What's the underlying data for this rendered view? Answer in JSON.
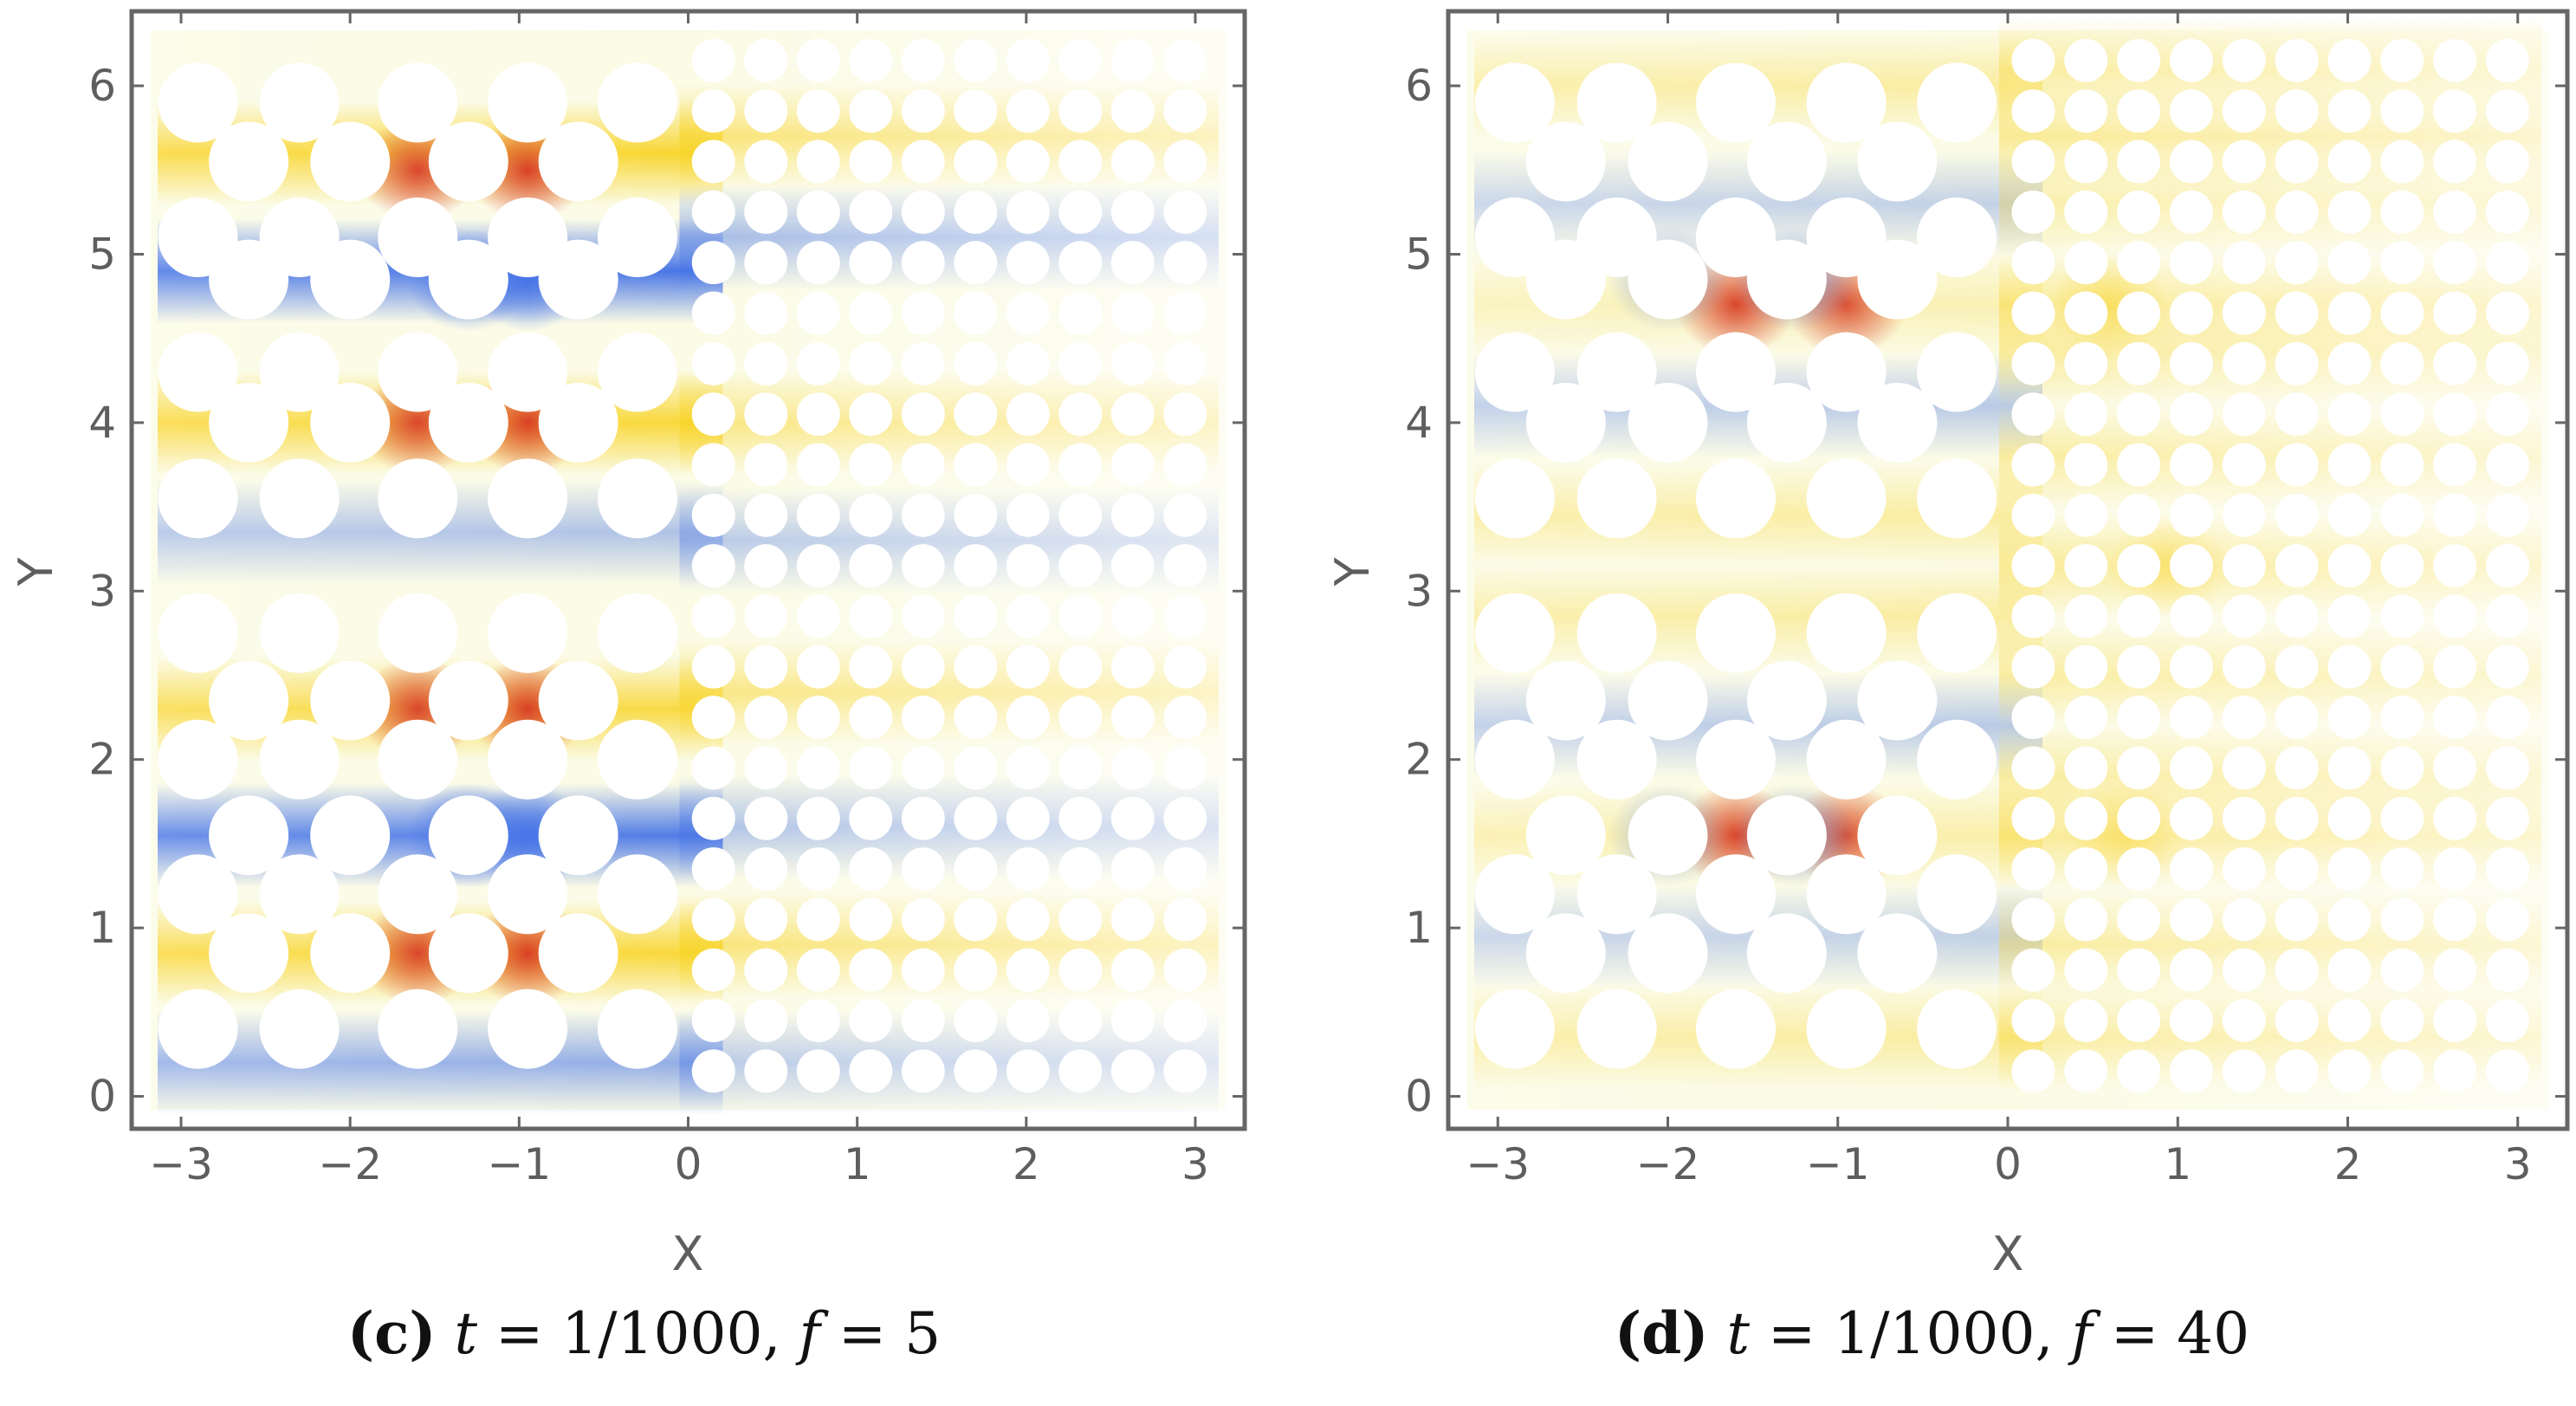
{
  "colors": {
    "frame": "#666666",
    "tick_text": "#5e5e5e",
    "negative": "#3f6fe6",
    "neutral": "#fbfbe6",
    "positive_mid": "#f8d21e",
    "positive_high": "#d7381c"
  },
  "chart_data": [
    {
      "type": "heatmap",
      "panel": "c",
      "caption": {
        "label": "(c)",
        "t_var": "t",
        "t_value": "= 1/1000,",
        "f_var": "f",
        "f_value": "= 5"
      },
      "xlabel": "X",
      "ylabel": "Y",
      "xlim": [
        -3.2,
        3.2
      ],
      "ylim": [
        -0.1,
        6.35
      ],
      "xticks": [
        -3,
        -2,
        -1,
        0,
        1,
        2,
        3
      ],
      "xtick_labels": [
        "−3",
        "−2",
        "−1",
        "0",
        "1",
        "2",
        "3"
      ],
      "yticks": [
        0,
        1,
        2,
        3,
        4,
        5,
        6
      ],
      "ytick_labels": [
        "0",
        "1",
        "2",
        "3",
        "4",
        "5",
        "6"
      ],
      "field_bands_left": [
        {
          "y": 5.6,
          "value": 0.85
        },
        {
          "y": 4.9,
          "value": -0.9
        },
        {
          "y": 4.0,
          "value": 0.8
        },
        {
          "y": 3.35,
          "value": -0.35
        },
        {
          "y": 2.3,
          "value": 0.75
        },
        {
          "y": 1.55,
          "value": -0.85
        },
        {
          "y": 0.85,
          "value": 0.8
        },
        {
          "y": 0.2,
          "value": -0.5
        }
      ],
      "field_bands_right": [
        {
          "y": 5.7,
          "value": 0.5
        },
        {
          "y": 5.1,
          "value": -0.4
        },
        {
          "y": 4.0,
          "value": 0.45
        },
        {
          "y": 3.3,
          "value": -0.3
        },
        {
          "y": 2.4,
          "value": 0.45
        },
        {
          "y": 1.6,
          "value": -0.35
        },
        {
          "y": 0.9,
          "value": 0.5
        },
        {
          "y": 0.2,
          "value": -0.3
        }
      ],
      "hot_spots": [
        {
          "x": -1.6,
          "y": 5.5,
          "value": 1.0
        },
        {
          "x": -0.95,
          "y": 5.5,
          "value": 1.0
        },
        {
          "x": -1.6,
          "y": 4.0,
          "value": 1.0
        },
        {
          "x": -0.95,
          "y": 4.0,
          "value": 1.0
        },
        {
          "x": -1.6,
          "y": 2.3,
          "value": 1.0
        },
        {
          "x": -0.95,
          "y": 2.3,
          "value": 1.0
        },
        {
          "x": -1.6,
          "y": 0.85,
          "value": 1.0
        },
        {
          "x": -0.95,
          "y": 0.85,
          "value": 1.0
        }
      ],
      "cold_spots": [
        {
          "x": -1.3,
          "y": 4.85,
          "value": -1.0
        },
        {
          "x": -0.95,
          "y": 4.85,
          "value": -1.0
        },
        {
          "x": -1.3,
          "y": 1.55,
          "value": -1.0
        },
        {
          "x": -0.95,
          "y": 1.55,
          "value": -1.0
        }
      ]
    },
    {
      "type": "heatmap",
      "panel": "d",
      "caption": {
        "label": "(d)",
        "t_var": "t",
        "t_value": "= 1/1000,",
        "f_var": "f",
        "f_value": "= 40"
      },
      "xlabel": "X",
      "ylabel": "Y",
      "xlim": [
        -3.2,
        3.2
      ],
      "ylim": [
        -0.1,
        6.35
      ],
      "xticks": [
        -3,
        -2,
        -1,
        0,
        1,
        2,
        3
      ],
      "xtick_labels": [
        "−3",
        "−2",
        "−1",
        "0",
        "1",
        "2",
        "3"
      ],
      "yticks": [
        0,
        1,
        2,
        3,
        4,
        5,
        6
      ],
      "ytick_labels": [
        "0",
        "1",
        "2",
        "3",
        "4",
        "5",
        "6"
      ],
      "field_bands_left": [
        {
          "y": 6.0,
          "value": 0.3
        },
        {
          "y": 5.3,
          "value": -0.25
        },
        {
          "y": 4.7,
          "value": 0.2
        },
        {
          "y": 4.1,
          "value": -0.3
        },
        {
          "y": 3.45,
          "value": 0.3
        },
        {
          "y": 2.85,
          "value": 0.3
        },
        {
          "y": 2.2,
          "value": -0.3
        },
        {
          "y": 1.55,
          "value": 0.25
        },
        {
          "y": 0.95,
          "value": -0.25
        },
        {
          "y": 0.35,
          "value": 0.3
        }
      ],
      "field_bands_right": [
        {
          "y": 6.1,
          "value": 0.3
        },
        {
          "y": 5.7,
          "value": 0.35
        },
        {
          "y": 5.3,
          "value": 0.25
        },
        {
          "y": 4.7,
          "value": 0.35
        },
        {
          "y": 4.4,
          "value": 0.3
        },
        {
          "y": 3.8,
          "value": 0.3
        },
        {
          "y": 3.15,
          "value": 0.35
        },
        {
          "y": 2.5,
          "value": 0.3
        },
        {
          "y": 1.9,
          "value": 0.3
        },
        {
          "y": 1.55,
          "value": 0.35
        },
        {
          "y": 0.9,
          "value": 0.3
        },
        {
          "y": 0.35,
          "value": 0.3
        }
      ],
      "hot_spots": [
        {
          "x": -1.6,
          "y": 4.7,
          "value": 1.0
        },
        {
          "x": -0.95,
          "y": 4.7,
          "value": 0.9
        },
        {
          "x": -1.6,
          "y": 1.55,
          "value": 1.0
        },
        {
          "x": -0.95,
          "y": 1.55,
          "value": 0.9
        },
        {
          "x": 0.6,
          "y": 4.7,
          "value": 0.6
        },
        {
          "x": 0.95,
          "y": 3.15,
          "value": 0.55
        },
        {
          "x": 0.7,
          "y": 1.55,
          "value": 0.55
        }
      ],
      "cold_spots": [
        {
          "x": -2.0,
          "y": 4.85,
          "value": -0.5
        },
        {
          "x": -1.25,
          "y": 4.85,
          "value": -0.6
        },
        {
          "x": -2.0,
          "y": 1.55,
          "value": -0.5
        },
        {
          "x": -1.25,
          "y": 1.55,
          "value": -0.6
        }
      ]
    }
  ]
}
